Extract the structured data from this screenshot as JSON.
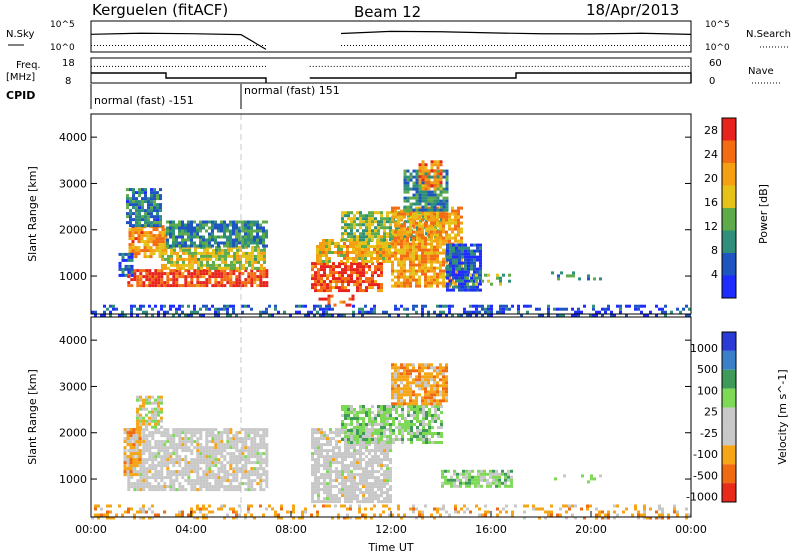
{
  "header": {
    "station": "Kerguelen (fitACF)",
    "beam": "Beam 12",
    "date": "18/Apr/2013"
  },
  "chart_data": [
    {
      "type": "line",
      "panel": "noise",
      "left_label": "N.Sky",
      "right_label": "N.Search",
      "left_ticks": [
        "10^5",
        "10^0"
      ],
      "right_ticks": [
        "10^5",
        "10^0"
      ],
      "x": [
        "00:00",
        "02:00",
        "04:00",
        "06:00",
        "07:00",
        "08:45",
        "10:00",
        "12:00",
        "14:00",
        "16:00",
        "18:00",
        "20:00",
        "22:00",
        "24:00"
      ],
      "series": [
        {
          "name": "N.Sky",
          "values": [
            1000,
            1200,
            1300,
            1200,
            1,
            null,
            1500,
            2500,
            4000,
            2000,
            1500,
            1300,
            1200,
            1100
          ]
        },
        {
          "name": "N.Search",
          "values": [
            5,
            5,
            5,
            5,
            5,
            null,
            5,
            5,
            5,
            5,
            5,
            5,
            5,
            5
          ]
        }
      ]
    },
    {
      "type": "line",
      "panel": "frequency",
      "left_label": "Freq.",
      "left_unit": "[MHz]",
      "right_label": "Nave",
      "left_ticks": [
        18,
        8
      ],
      "right_ticks": [
        60,
        0
      ],
      "segments": [
        {
          "from": "00:00",
          "to": "03:00",
          "freq": 12,
          "nave": 40
        },
        {
          "from": "03:00",
          "to": "07:00",
          "freq": 10,
          "nave": 40
        },
        {
          "from": "08:45",
          "to": "17:00",
          "freq": 10,
          "nave": 40
        },
        {
          "from": "17:00",
          "to": "24:00",
          "freq": 12,
          "nave": 40
        }
      ]
    },
    {
      "type": "table",
      "panel": "cpid",
      "label": "CPID",
      "entries": [
        {
          "start": "00:00",
          "text": "normal (fast) -151"
        },
        {
          "start": "06:00",
          "text": "normal (fast) 151"
        }
      ]
    },
    {
      "type": "heatmap",
      "panel": "power",
      "ylabel": "Slant Range [km]",
      "xlabel": "",
      "ylim": [
        180,
        4500
      ],
      "y_ticks": [
        1000,
        2000,
        3000,
        4000
      ],
      "colorbar": {
        "label": "Power [dB]",
        "ticks": [
          4,
          8,
          12,
          16,
          20,
          24,
          28
        ],
        "range": [
          0,
          30
        ],
        "colors": [
          "#1f2cff",
          "#1f55c0",
          "#2f8f7a",
          "#5dab4a",
          "#e6c219",
          "#f5a013",
          "#f36b12",
          "#e8231d"
        ]
      },
      "regions": [
        {
          "t0": 1.45,
          "t1": 7.0,
          "r0": 800,
          "r1": 1150,
          "level": 27
        },
        {
          "t0": 2.8,
          "t1": 7.0,
          "r0": 1150,
          "r1": 1650,
          "level": 16
        },
        {
          "t0": 1.5,
          "t1": 3.0,
          "r0": 1400,
          "r1": 2100,
          "level": 22
        },
        {
          "t0": 1.4,
          "t1": 2.8,
          "r0": 2100,
          "r1": 2900,
          "level": 8
        },
        {
          "t0": 1.1,
          "t1": 1.6,
          "r0": 1000,
          "r1": 1500,
          "level": 6
        },
        {
          "t0": 3.0,
          "t1": 7.0,
          "r0": 1650,
          "r1": 2200,
          "level": 9
        },
        {
          "t0": 8.8,
          "t1": 11.6,
          "r0": 700,
          "r1": 1300,
          "level": 26
        },
        {
          "t0": 9.0,
          "t1": 12.0,
          "r0": 1300,
          "r1": 1800,
          "level": 18
        },
        {
          "t0": 9.1,
          "t1": 10.5,
          "r0": 400,
          "r1": 600,
          "level": 27
        },
        {
          "t0": 10.0,
          "t1": 14.0,
          "r0": 1800,
          "r1": 2400,
          "level": 14
        },
        {
          "t0": 12.0,
          "t1": 14.8,
          "r0": 800,
          "r1": 2500,
          "level": 21
        },
        {
          "t0": 12.5,
          "t1": 14.3,
          "r0": 2400,
          "r1": 3300,
          "level": 9
        },
        {
          "t0": 13.1,
          "t1": 14.0,
          "r0": 2900,
          "r1": 3500,
          "level": 23
        },
        {
          "t0": 14.2,
          "t1": 15.6,
          "r0": 700,
          "r1": 1700,
          "level": 5
        },
        {
          "t0": 15.0,
          "t1": 16.8,
          "r0": 850,
          "r1": 1050,
          "level": 13
        },
        {
          "t0": 18.4,
          "t1": 20.4,
          "r0": 950,
          "r1": 1100,
          "level": 10
        },
        {
          "t0": 0.0,
          "t1": 24.0,
          "r0": 180,
          "r1": 380,
          "level": 5
        }
      ]
    },
    {
      "type": "heatmap",
      "panel": "velocity",
      "ylabel": "Slant Range [km]",
      "xlabel": "Time UT",
      "ylim": [
        180,
        4500
      ],
      "y_ticks": [
        1000,
        2000,
        3000,
        4000
      ],
      "x_ticks": [
        "00:00",
        "04:00",
        "08:00",
        "12:00",
        "16:00",
        "20:00",
        "00:00"
      ],
      "colorbar": {
        "label": "Velocity [m s^-1]",
        "ticks": [
          1000,
          500,
          100,
          25,
          -25,
          -100,
          -500,
          -1000
        ],
        "colors": [
          "#2a3bd6",
          "#3a80c8",
          "#3d9a58",
          "#7ed957",
          "#c8c8c8",
          "#c8c8c8",
          "#f5a516",
          "#f06a12",
          "#e82a1a"
        ]
      },
      "regions": [
        {
          "t0": 1.45,
          "t1": 7.0,
          "r0": 800,
          "r1": 2100,
          "class": "ground"
        },
        {
          "t0": 1.3,
          "t1": 2.0,
          "r0": 1100,
          "r1": 2100,
          "class": "neg"
        },
        {
          "t0": 1.8,
          "t1": 2.8,
          "r0": 2100,
          "r1": 2800,
          "class": "mixed"
        },
        {
          "t0": 8.8,
          "t1": 12.0,
          "r0": 500,
          "r1": 2100,
          "class": "ground"
        },
        {
          "t0": 10.0,
          "t1": 14.0,
          "r0": 1800,
          "r1": 2600,
          "class": "pos"
        },
        {
          "t0": 12.0,
          "t1": 14.2,
          "r0": 2600,
          "r1": 3500,
          "class": "neg"
        },
        {
          "t0": 14.0,
          "t1": 16.8,
          "r0": 850,
          "r1": 1200,
          "class": "pos"
        },
        {
          "t0": 18.4,
          "t1": 20.4,
          "r0": 950,
          "r1": 1100,
          "class": "pos"
        },
        {
          "t0": 0.0,
          "t1": 24.0,
          "r0": 180,
          "r1": 450,
          "class": "neg"
        }
      ]
    }
  ]
}
